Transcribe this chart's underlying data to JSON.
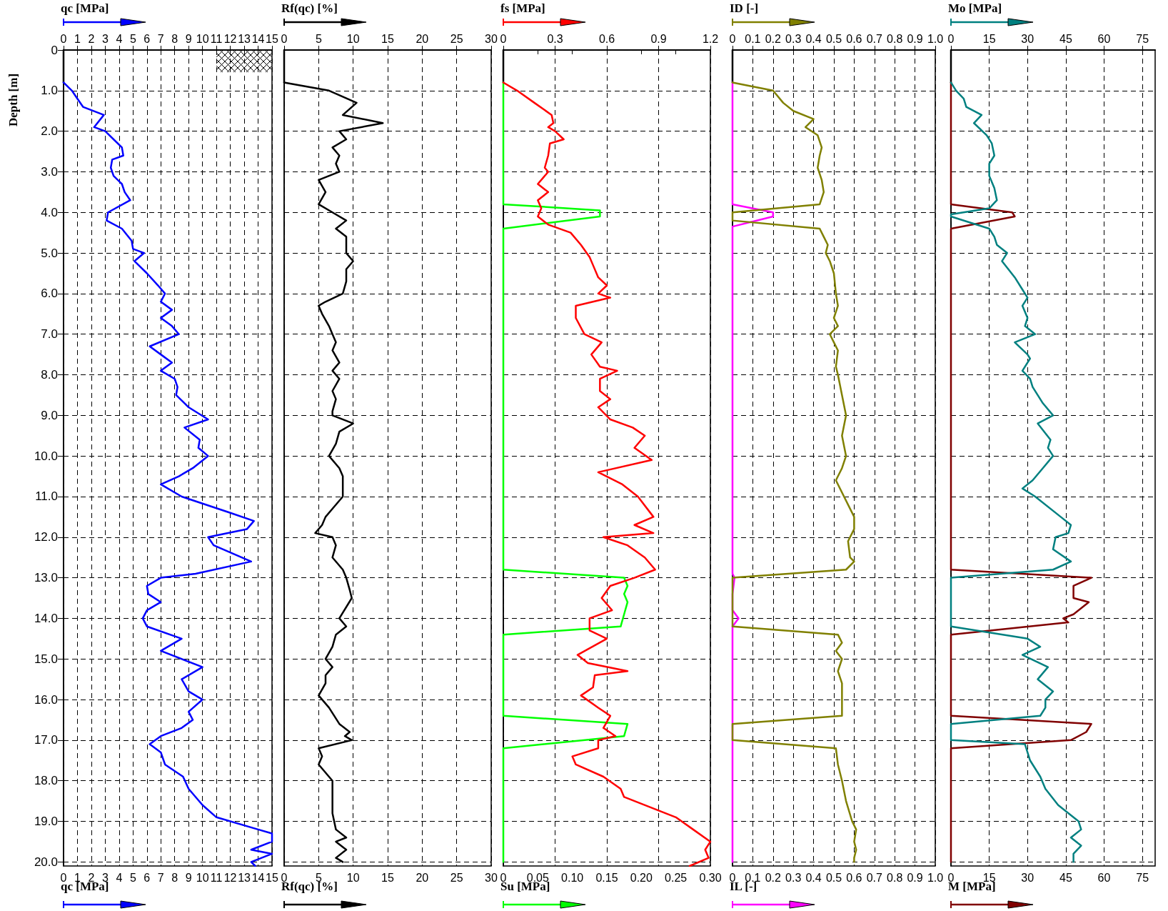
{
  "chart_data": [
    {
      "type": "line",
      "x2label": "qc [MPa]",
      "xlabel": "qc [MPa]",
      "ylabel": "Depth [m]",
      "x2lim": [
        0,
        15
      ],
      "x2ticks": [
        0,
        1,
        2,
        3,
        4,
        5,
        6,
        7,
        8,
        9,
        10,
        11,
        12,
        13,
        14,
        15
      ],
      "xlim": [
        0,
        15
      ],
      "xticks": [
        0,
        1,
        2,
        3,
        4,
        5,
        6,
        7,
        8,
        9,
        10,
        11,
        12,
        13,
        14,
        15
      ],
      "ylim": [
        20.1,
        0
      ],
      "yticks": [
        0,
        {
          "value": 1,
          "label": "1.0"
        },
        {
          "value": 2,
          "label": "2.0"
        },
        {
          "value": 3,
          "label": "3.0"
        },
        {
          "value": 4,
          "label": "4.0"
        },
        {
          "value": 5,
          "label": "5.0"
        },
        {
          "value": 6,
          "label": "6.0"
        },
        {
          "value": 7,
          "label": "7.0"
        },
        {
          "value": 8,
          "label": "8.0"
        },
        {
          "value": 9,
          "label": "9.0"
        },
        {
          "value": 10,
          "label": "10.0"
        },
        {
          "value": 11,
          "label": "11.0"
        },
        {
          "value": 12,
          "label": "12.0"
        },
        {
          "value": 13,
          "label": "13.0"
        },
        {
          "value": 14,
          "label": "14.0"
        },
        {
          "value": 15,
          "label": "15.0"
        },
        {
          "value": 16,
          "label": "16.0"
        },
        {
          "value": 17,
          "label": "17.0"
        },
        {
          "value": 18,
          "label": "18.0"
        },
        {
          "value": 19,
          "label": "19.0"
        },
        {
          "value": 20,
          "label": "20.0"
        }
      ],
      "grid": true,
      "marker": "none",
      "line_style": "solid",
      "series": [
        {
          "color": "#000000",
          "axis": "x2",
          "x": [
            0,
            0
          ],
          "values": [
            0,
            0.8
          ]
        },
        {
          "color": "#0000ff",
          "axis": "x2",
          "x": [
            0,
            0.6,
            1.0,
            1.4,
            2.9,
            2.2,
            3.0,
            3.6,
            4.2,
            4.3,
            3.5,
            3.4,
            3.6,
            4.2,
            4.4,
            4.8,
            3.2,
            3.1,
            4.2,
            4.9,
            5.0,
            5.8,
            5.1,
            6.0,
            6.8,
            7.3,
            7.0,
            7.8,
            7.0,
            7.8,
            8.3,
            6.2,
            7.0,
            7.8,
            7.0,
            8.0,
            8.2,
            8.1,
            9.0,
            10.4,
            8.7,
            9.8,
            9.7,
            10.4,
            9.3,
            8.3,
            7.0,
            8.5,
            12.0,
            13.7,
            13.2,
            10.4,
            10.8,
            13.5,
            9.5,
            7.0,
            6.0,
            6.1,
            7.0,
            6.0,
            5.7,
            6.0,
            8.5,
            7.0,
            10.0,
            8.5,
            9.0,
            10.0,
            9.0,
            9.3,
            8.5,
            7.0,
            6.2,
            7.0,
            7.3,
            8.6,
            9.0,
            10.0,
            11.0,
            14.0,
            15.0,
            15.0,
            13.5,
            15.0,
            13.5,
            13.8
          ],
          "values": [
            0.8,
            1.0,
            1.2,
            1.4,
            1.6,
            1.9,
            2.0,
            2.2,
            2.4,
            2.6,
            2.7,
            2.9,
            3.1,
            3.3,
            3.5,
            3.7,
            4.0,
            4.2,
            4.4,
            4.7,
            4.9,
            5.0,
            5.2,
            5.5,
            5.8,
            6.0,
            6.2,
            6.4,
            6.6,
            6.8,
            7.0,
            7.3,
            7.5,
            7.7,
            7.9,
            8.1,
            8.3,
            8.5,
            8.8,
            9.1,
            9.3,
            9.6,
            9.8,
            10.0,
            10.3,
            10.5,
            10.7,
            11.0,
            11.4,
            11.6,
            11.8,
            12.0,
            12.2,
            12.6,
            12.9,
            13.0,
            13.2,
            13.4,
            13.6,
            13.8,
            14.0,
            14.2,
            14.5,
            14.8,
            15.2,
            15.5,
            15.8,
            16.0,
            16.3,
            16.5,
            16.7,
            16.9,
            17.1,
            17.3,
            17.6,
            17.9,
            18.2,
            18.6,
            18.9,
            19.2,
            19.3,
            19.5,
            19.7,
            19.8,
            20.0,
            20.1
          ]
        }
      ]
    },
    {
      "type": "line",
      "x2label": "Rf(qc) [%]",
      "xlabel": "Rf(qc) [%]",
      "x2lim": [
        0,
        30
      ],
      "x2ticks": [
        0,
        5,
        10,
        15,
        20,
        25,
        30
      ],
      "xlim": [
        0,
        30
      ],
      "xticks": [
        0,
        5,
        10,
        15,
        20,
        25,
        30
      ],
      "ylim": [
        20.1,
        0
      ],
      "yticks": [
        0,
        1,
        2,
        3,
        4,
        5,
        6,
        7,
        8,
        9,
        10,
        11,
        12,
        13,
        14,
        15,
        16,
        17,
        18,
        19,
        20
      ],
      "tick_labels": "x",
      "grid": true,
      "marker": "none",
      "line_style": "solid",
      "series": [
        {
          "color": "#000000",
          "axis": "x2",
          "x": [
            0,
            0
          ],
          "values": [
            0,
            0.8
          ]
        },
        {
          "color": "#000000",
          "axis": "x2",
          "x": [
            0,
            6.5,
            10.5,
            8.5,
            14.3,
            8.0,
            9.0,
            7.0,
            8.0,
            7.5,
            8.0,
            5.0,
            6.0,
            5.0,
            7.0,
            9.0,
            7.5,
            9.0,
            9.0,
            10.0,
            9.0,
            9.0,
            8.5,
            6.0,
            5.0,
            5.5,
            6.5,
            7.0,
            7.5,
            7.0,
            8.0,
            7.0,
            8.0,
            7.0,
            7.5,
            7.0,
            7.0,
            10.0,
            8.0,
            7.5,
            6.5,
            8.0,
            8.5,
            8.5,
            7.0,
            6.0,
            5.5,
            4.5,
            7.0,
            7.5,
            7.0,
            8.5,
            9.0,
            9.5,
            9.8,
            8.0,
            9.0,
            7.5,
            7.0,
            6.0,
            7.0,
            6.0,
            6.0,
            5.0,
            6.5,
            8.0,
            9.5,
            8.8,
            9.8,
            5.0,
            5.5,
            5.0,
            7.0,
            7.0,
            7.0,
            7.5,
            9.0,
            7.5,
            9.0,
            7.5,
            8.5
          ],
          "values": [
            0.8,
            1.0,
            1.3,
            1.6,
            1.8,
            2.0,
            2.2,
            2.4,
            2.6,
            2.8,
            3.0,
            3.2,
            3.5,
            3.8,
            4.0,
            4.2,
            4.4,
            4.6,
            5.0,
            5.2,
            5.4,
            5.7,
            6.0,
            6.2,
            6.3,
            6.5,
            6.8,
            7.0,
            7.2,
            7.4,
            7.7,
            7.9,
            8.1,
            8.4,
            8.6,
            8.9,
            9.0,
            9.2,
            9.4,
            9.7,
            10.0,
            10.3,
            10.5,
            11.0,
            11.3,
            11.5,
            11.7,
            11.9,
            12.0,
            12.2,
            12.5,
            12.8,
            13.0,
            13.3,
            13.5,
            14.0,
            14.2,
            14.4,
            14.7,
            15.0,
            15.2,
            15.4,
            15.6,
            15.9,
            16.2,
            16.6,
            16.8,
            16.9,
            17.0,
            17.2,
            17.4,
            17.6,
            18.0,
            18.4,
            18.8,
            19.2,
            19.4,
            19.5,
            19.7,
            19.9,
            20.0
          ]
        }
      ]
    },
    {
      "type": "line",
      "x2label": "fs [MPa]",
      "xlabel": "Su [MPa]",
      "x2lim": [
        0,
        1.2
      ],
      "x2ticks": [
        0,
        0.3,
        0.6,
        0.9,
        1.2
      ],
      "xlim": [
        0,
        0.3
      ],
      "xticks": [
        0,
        {
          "value": 0.05,
          "label": "0.05"
        },
        {
          "value": 0.1,
          "label": "0.10"
        },
        {
          "value": 0.15,
          "label": "0.15"
        },
        {
          "value": 0.2,
          "label": "0.20"
        },
        {
          "value": 0.25,
          "label": "0.25"
        },
        {
          "value": 0.3,
          "label": "0.30"
        }
      ],
      "ylim": [
        20.1,
        0
      ],
      "yticks": [
        0,
        1,
        2,
        3,
        4,
        5,
        6,
        7,
        8,
        9,
        10,
        11,
        12,
        13,
        14,
        15,
        16,
        17,
        18,
        19,
        20
      ],
      "tick_labels": "x",
      "grid": true,
      "marker": "none",
      "line_style": "solid",
      "series": [
        {
          "color": "#000000",
          "axis": "x2",
          "x": [
            0,
            0
          ],
          "values": [
            0,
            0.8
          ]
        },
        {
          "color": "#00ff00",
          "x": [
            0,
            0,
            0.14,
            0.14,
            0,
            0,
            0.175,
            0.18,
            0.175,
            0.18,
            0.175,
            0.17,
            0,
            0,
            0.18,
            0.175,
            0,
            0
          ],
          "values": [
            0.8,
            3.8,
            3.95,
            4.1,
            4.4,
            12.8,
            13.0,
            13.2,
            13.4,
            13.6,
            13.9,
            14.2,
            14.4,
            16.4,
            16.6,
            16.9,
            17.2,
            20.0
          ]
        },
        {
          "color": "#ff0000",
          "axis": "x2",
          "x": [
            0,
            0.08,
            0.18,
            0.28,
            0.29,
            0.26,
            0.3,
            0.35,
            0.27,
            0.26,
            0.24,
            0.26,
            0.2,
            0.26,
            0.2,
            0.22,
            0.2,
            0.26,
            0.39,
            0.45,
            0.5,
            0.52,
            0.55,
            0.6,
            0.55,
            0.62,
            0.42,
            0.42,
            0.47,
            0.57,
            0.51,
            0.56,
            0.66,
            0.56,
            0.56,
            0.62,
            0.55,
            0.62,
            0.75,
            0.82,
            0.76,
            0.86,
            0.55,
            0.69,
            0.78,
            0.87,
            0.76,
            0.87,
            0.58,
            0.72,
            0.82,
            0.88,
            0.76,
            0.62,
            0.57,
            0.63,
            0.5,
            0.5,
            0.6,
            0.43,
            0.49,
            0.72,
            0.53,
            0.52,
            0.45,
            0.55,
            0.62,
            0.58,
            0.65,
            0.55,
            0.55,
            0.4,
            0.42,
            0.58,
            0.68,
            0.7,
            1.0,
            1.1,
            1.2,
            1.17,
            1.19,
            1.08
          ],
          "values": [
            0.8,
            1.0,
            1.3,
            1.6,
            1.8,
            1.9,
            2.0,
            2.2,
            2.3,
            2.6,
            2.9,
            3.0,
            3.3,
            3.5,
            3.7,
            3.9,
            4.1,
            4.3,
            4.5,
            4.8,
            5.1,
            5.3,
            5.6,
            5.8,
            6.0,
            6.1,
            6.3,
            6.6,
            7.0,
            7.2,
            7.5,
            7.8,
            7.9,
            8.1,
            8.4,
            8.6,
            8.8,
            9.1,
            9.3,
            9.5,
            9.8,
            10.1,
            10.4,
            10.7,
            11.0,
            11.5,
            11.7,
            11.9,
            12.0,
            12.2,
            12.5,
            12.8,
            13.0,
            13.2,
            13.5,
            13.8,
            14.0,
            14.3,
            14.5,
            14.9,
            15.1,
            15.3,
            15.4,
            15.7,
            15.9,
            16.2,
            16.4,
            16.7,
            16.9,
            17.0,
            17.2,
            17.4,
            17.6,
            17.9,
            18.2,
            18.4,
            18.9,
            19.2,
            19.5,
            19.7,
            19.9,
            20.1
          ]
        }
      ]
    },
    {
      "type": "line",
      "x2label": "ID [-]",
      "xlabel": "IL [-]",
      "x2lim": [
        0,
        1
      ],
      "x2ticks": [
        0,
        0.1,
        0.2,
        0.3,
        0.4,
        0.5,
        0.6,
        0.7,
        0.8,
        0.9,
        {
          "value": 1,
          "label": "1.0"
        }
      ],
      "xlim": [
        0,
        1
      ],
      "xticks": [
        0,
        0.1,
        0.2,
        0.3,
        0.4,
        0.5,
        0.6,
        0.7,
        0.8,
        0.9,
        {
          "value": 1,
          "label": "1.0"
        }
      ],
      "ylim": [
        20.1,
        0
      ],
      "yticks": [
        0,
        1,
        2,
        3,
        4,
        5,
        6,
        7,
        8,
        9,
        10,
        11,
        12,
        13,
        14,
        15,
        16,
        17,
        18,
        19,
        20
      ],
      "tick_labels": "x",
      "grid": true,
      "marker": "none",
      "line_style": "solid",
      "series": [
        {
          "color": "#000000",
          "axis": "x2",
          "x": [
            0,
            0
          ],
          "values": [
            0,
            0.8
          ]
        },
        {
          "color": "#ff00ff",
          "x": [
            0,
            0,
            0.2,
            0.2,
            0,
            0,
            0.01,
            0,
            0,
            0.03,
            0,
            0
          ],
          "values": [
            0.8,
            3.8,
            4.0,
            4.1,
            4.35,
            12.9,
            13.0,
            13.4,
            13.8,
            14.0,
            14.2,
            20.0
          ]
        },
        {
          "color": "#808000",
          "axis": "x2",
          "x": [
            0,
            0.2,
            0.25,
            0.3,
            0.4,
            0.36,
            0.42,
            0.44,
            0.43,
            0.42,
            0.44,
            0.45,
            0.43,
            0,
            0,
            0.43,
            0.45,
            0.47,
            0.46,
            0.48,
            0.5,
            0.51,
            0.52,
            0.5,
            0.52,
            0.48,
            0.5,
            0.52,
            0.51,
            0.52,
            0.54,
            0.56,
            0.54,
            0.56,
            0.54,
            0.51,
            0.55,
            0.6,
            0.6,
            0.57,
            0.58,
            0.6,
            0.56,
            0,
            0,
            0.52,
            0.54,
            0.51,
            0.54,
            0.52,
            0.54,
            0.54,
            0.54,
            0,
            0,
            0.51,
            0.52,
            0.54,
            0.56,
            0.59,
            0.61,
            0.6,
            0.61,
            0.6,
            0.6
          ],
          "values": [
            0.8,
            1.0,
            1.3,
            1.5,
            1.7,
            1.9,
            2.1,
            2.4,
            2.6,
            2.9,
            3.2,
            3.5,
            3.8,
            4.0,
            4.2,
            4.4,
            4.6,
            4.8,
            5.0,
            5.2,
            5.5,
            6.0,
            6.3,
            6.6,
            6.8,
            7.0,
            7.2,
            7.4,
            7.8,
            8.0,
            8.5,
            9.0,
            9.5,
            10.0,
            10.3,
            10.6,
            11.0,
            11.5,
            11.8,
            12.1,
            12.5,
            12.6,
            12.8,
            13.0,
            14.2,
            14.4,
            14.6,
            14.8,
            15.0,
            15.3,
            15.6,
            15.9,
            16.4,
            16.6,
            17.0,
            17.2,
            17.6,
            18.0,
            18.5,
            19.0,
            19.2,
            19.5,
            19.7,
            19.9,
            20.0
          ]
        }
      ]
    },
    {
      "type": "line",
      "x2label": "Mo [MPa]",
      "xlabel": "M [MPa]",
      "x2lim": [
        0,
        80
      ],
      "x2ticks": [
        0,
        15,
        30,
        45,
        60,
        75
      ],
      "xlim": [
        0,
        80
      ],
      "xticks": [
        0,
        15,
        30,
        45,
        60,
        75
      ],
      "ylim": [
        20.1,
        0
      ],
      "yticks": [
        0,
        1,
        2,
        3,
        4,
        5,
        6,
        7,
        8,
        9,
        10,
        11,
        12,
        13,
        14,
        15,
        16,
        17,
        18,
        19,
        20
      ],
      "tick_labels": "x",
      "grid": true,
      "marker": "none",
      "line_style": "solid",
      "series": [
        {
          "color": "#000000",
          "axis": "x2",
          "x": [
            0,
            0
          ],
          "values": [
            0,
            0.8
          ]
        },
        {
          "color": "#800000",
          "x": [
            0,
            0,
            24,
            25,
            0,
            0,
            55,
            48,
            48,
            54,
            48,
            44,
            46,
            0,
            0,
            55,
            53,
            47,
            0,
            0
          ],
          "values": [
            0.8,
            3.8,
            4.0,
            4.1,
            4.4,
            12.8,
            13.0,
            13.2,
            13.5,
            13.6,
            13.9,
            14.0,
            14.1,
            14.4,
            16.4,
            16.6,
            16.8,
            17.0,
            17.2,
            20.0
          ]
        },
        {
          "color": "#008080",
          "axis": "x2",
          "x": [
            0,
            2,
            5,
            6,
            12,
            9,
            14,
            16,
            17,
            15,
            15,
            17,
            18,
            15,
            0,
            0,
            15,
            17,
            18,
            22,
            20,
            25,
            28,
            30,
            28,
            30,
            29,
            33,
            25,
            30,
            31,
            28,
            31,
            32,
            36,
            40,
            34,
            39,
            38,
            40,
            36,
            32,
            28,
            33,
            43,
            47,
            46,
            41,
            40,
            47,
            40,
            0,
            0,
            30,
            35,
            28,
            38,
            34,
            40,
            37,
            37,
            35,
            0,
            0,
            29,
            31,
            35,
            37,
            42,
            50,
            51,
            47,
            51,
            48,
            48
          ],
          "values": [
            0.8,
            1.0,
            1.2,
            1.4,
            1.6,
            1.8,
            2.1,
            2.3,
            2.6,
            2.8,
            3.1,
            3.4,
            3.7,
            3.9,
            4.05,
            4.1,
            4.4,
            4.6,
            4.8,
            5.0,
            5.2,
            5.6,
            5.9,
            6.1,
            6.3,
            6.6,
            6.8,
            7.0,
            7.2,
            7.5,
            7.6,
            7.9,
            8.1,
            8.3,
            8.7,
            9.0,
            9.2,
            9.6,
            9.8,
            10.0,
            10.3,
            10.6,
            10.8,
            11.0,
            11.5,
            11.7,
            11.9,
            12.0,
            12.3,
            12.6,
            12.8,
            13.0,
            14.2,
            14.5,
            14.7,
            14.9,
            15.2,
            15.5,
            15.8,
            16.0,
            16.2,
            16.4,
            16.6,
            17.0,
            17.1,
            17.5,
            17.9,
            18.2,
            18.6,
            19.0,
            19.2,
            19.4,
            19.6,
            19.8,
            20.0
          ]
        }
      ]
    }
  ]
}
